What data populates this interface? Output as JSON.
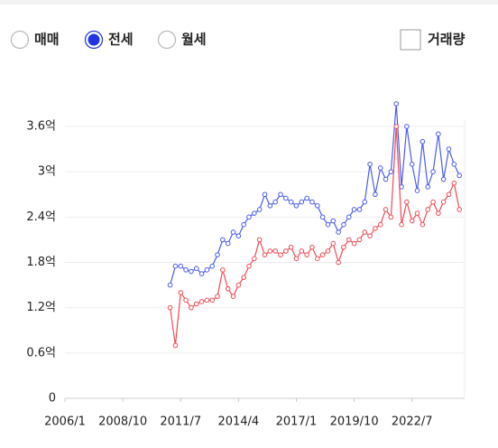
{
  "controls": {
    "radios": [
      {
        "label": "매매",
        "selected": false
      },
      {
        "label": "전세",
        "selected": true
      },
      {
        "label": "월세",
        "selected": false
      }
    ],
    "checkbox": {
      "label": "거래량",
      "checked": false
    }
  },
  "chart_data": {
    "type": "line",
    "grid": true,
    "x": [
      "2011/1",
      "2011/4",
      "2011/7",
      "2011/10",
      "2012/1",
      "2012/4",
      "2012/7",
      "2012/10",
      "2013/1",
      "2013/4",
      "2013/7",
      "2013/10",
      "2014/1",
      "2014/4",
      "2014/7",
      "2014/10",
      "2015/1",
      "2015/4",
      "2015/7",
      "2015/10",
      "2016/1",
      "2016/4",
      "2016/7",
      "2016/10",
      "2017/1",
      "2017/4",
      "2017/7",
      "2017/10",
      "2018/1",
      "2018/4",
      "2018/7",
      "2018/10",
      "2019/1",
      "2019/4",
      "2019/7",
      "2019/10",
      "2020/1",
      "2020/4",
      "2020/7",
      "2020/10",
      "2021/1",
      "2021/4",
      "2021/7",
      "2021/10",
      "2022/1",
      "2022/4",
      "2022/7",
      "2022/10",
      "2023/1",
      "2023/4",
      "2023/7",
      "2023/10",
      "2024/1",
      "2024/4",
      "2024/7",
      "2024/10"
    ],
    "series": [
      {
        "color": "#4a5cf0",
        "values": [
          1.5,
          1.75,
          1.75,
          1.7,
          1.68,
          1.72,
          1.65,
          1.7,
          1.75,
          1.9,
          2.1,
          2.05,
          2.2,
          2.15,
          2.3,
          2.4,
          2.45,
          2.5,
          2.7,
          2.55,
          2.6,
          2.7,
          2.65,
          2.6,
          2.55,
          2.6,
          2.65,
          2.6,
          2.55,
          2.4,
          2.3,
          2.35,
          2.2,
          2.3,
          2.4,
          2.5,
          2.5,
          2.6,
          3.1,
          2.7,
          3.05,
          2.9,
          3.0,
          3.9,
          2.8,
          3.6,
          3.1,
          2.75,
          3.4,
          2.8,
          3.0,
          3.5,
          2.9,
          3.3,
          3.1,
          2.95
        ]
      },
      {
        "color": "#f04a55",
        "values": [
          1.2,
          0.7,
          1.4,
          1.3,
          1.2,
          1.25,
          1.28,
          1.3,
          1.3,
          1.35,
          1.7,
          1.45,
          1.35,
          1.5,
          1.6,
          1.75,
          1.85,
          2.1,
          1.9,
          1.95,
          1.95,
          1.9,
          1.95,
          2.0,
          1.85,
          1.95,
          1.9,
          2.0,
          1.85,
          1.9,
          1.95,
          2.05,
          1.8,
          2.0,
          2.1,
          2.05,
          2.1,
          2.2,
          2.15,
          2.25,
          2.3,
          2.5,
          2.4,
          3.6,
          2.3,
          2.6,
          2.35,
          2.45,
          2.3,
          2.5,
          2.6,
          2.45,
          2.6,
          2.7,
          2.85,
          2.5
        ]
      }
    ],
    "xlim": [
      "2006/1",
      "2025/1"
    ],
    "xticks": [
      "2006/1",
      "2008/10",
      "2011/7",
      "2014/4",
      "2017/1",
      "2019/10",
      "2022/7"
    ],
    "ylim": [
      0,
      3.6
    ],
    "yticks": [
      0,
      {
        "value": 0.6,
        "label": "0.6억"
      },
      {
        "value": 1.2,
        "label": "1.2억"
      },
      {
        "value": 1.8,
        "label": "1.8억"
      },
      {
        "value": 2.4,
        "label": "2.4억"
      },
      {
        "value": 3,
        "label": "3억"
      },
      {
        "value": 3.6,
        "label": "3.6억"
      }
    ]
  }
}
